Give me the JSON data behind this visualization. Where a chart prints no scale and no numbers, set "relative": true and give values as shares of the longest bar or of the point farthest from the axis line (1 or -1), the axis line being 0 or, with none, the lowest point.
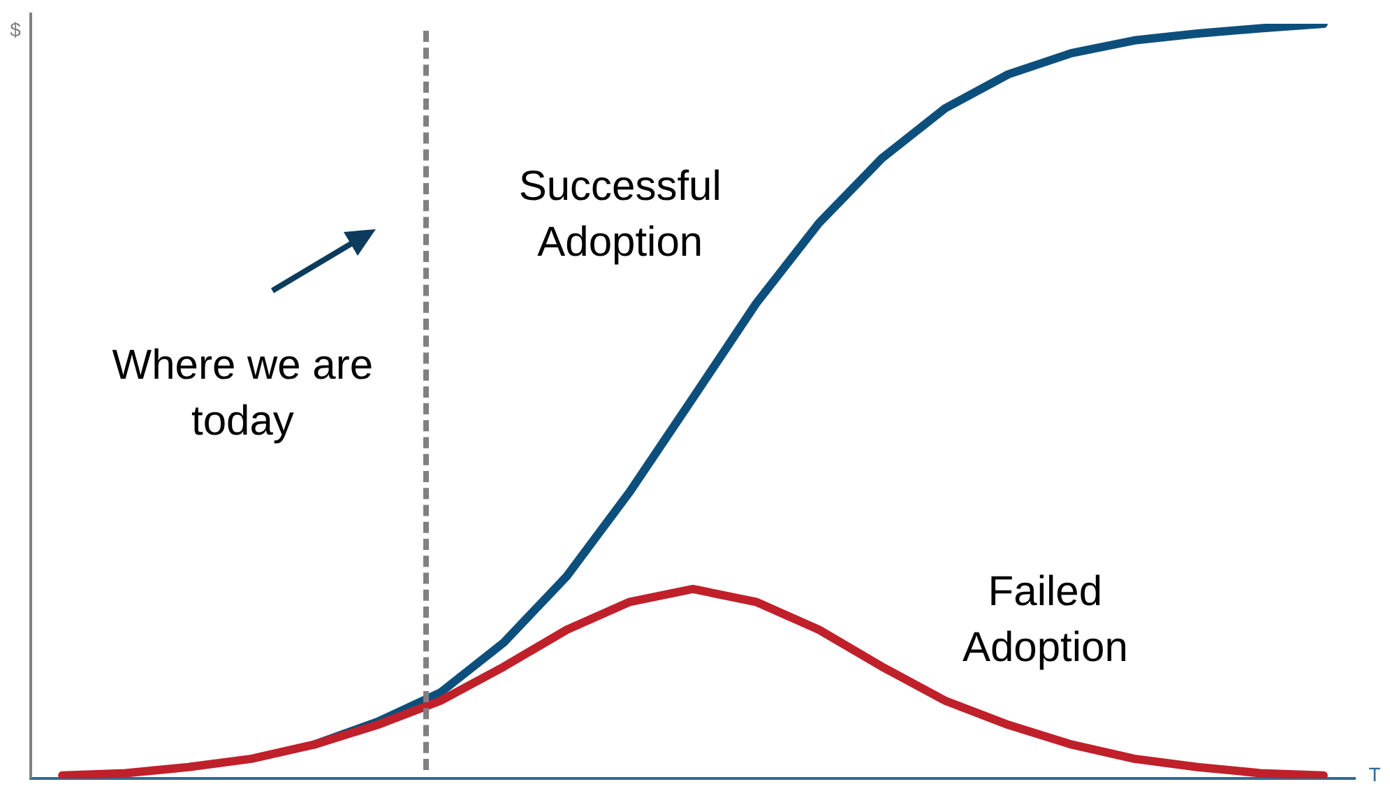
{
  "chart_data": {
    "type": "line",
    "relative": true,
    "xlabel": "T",
    "ylabel": "$",
    "categories": [
      null,
      null,
      null,
      null,
      null,
      null,
      null,
      null,
      null,
      null,
      null,
      null,
      null,
      null,
      null,
      null,
      null,
      null,
      null,
      null,
      null
    ],
    "legend": false,
    "marker": "none",
    "line_style": "solid",
    "series": [
      {
        "name": "Successful Adoption",
        "color": "#0d4f7c",
        "values": [
          null,
          null,
          null,
          null,
          0.045,
          0.075,
          0.114,
          0.18,
          0.268,
          0.38,
          0.504,
          0.629,
          0.736,
          0.822,
          0.888,
          0.933,
          0.961,
          0.978,
          0.987,
          0.994,
          1
        ]
      },
      {
        "name": "Failed Adoption",
        "color": "#c0202a",
        "values": [
          0.004,
          0.007,
          0.015,
          0.026,
          0.045,
          0.071,
          0.103,
          0.148,
          0.197,
          0.234,
          0.251,
          0.234,
          0.197,
          0.148,
          0.103,
          0.071,
          0.045,
          0.026,
          0.015,
          0.007,
          0.004
        ]
      }
    ],
    "annotations": [
      "Where we are today"
    ]
  }
}
